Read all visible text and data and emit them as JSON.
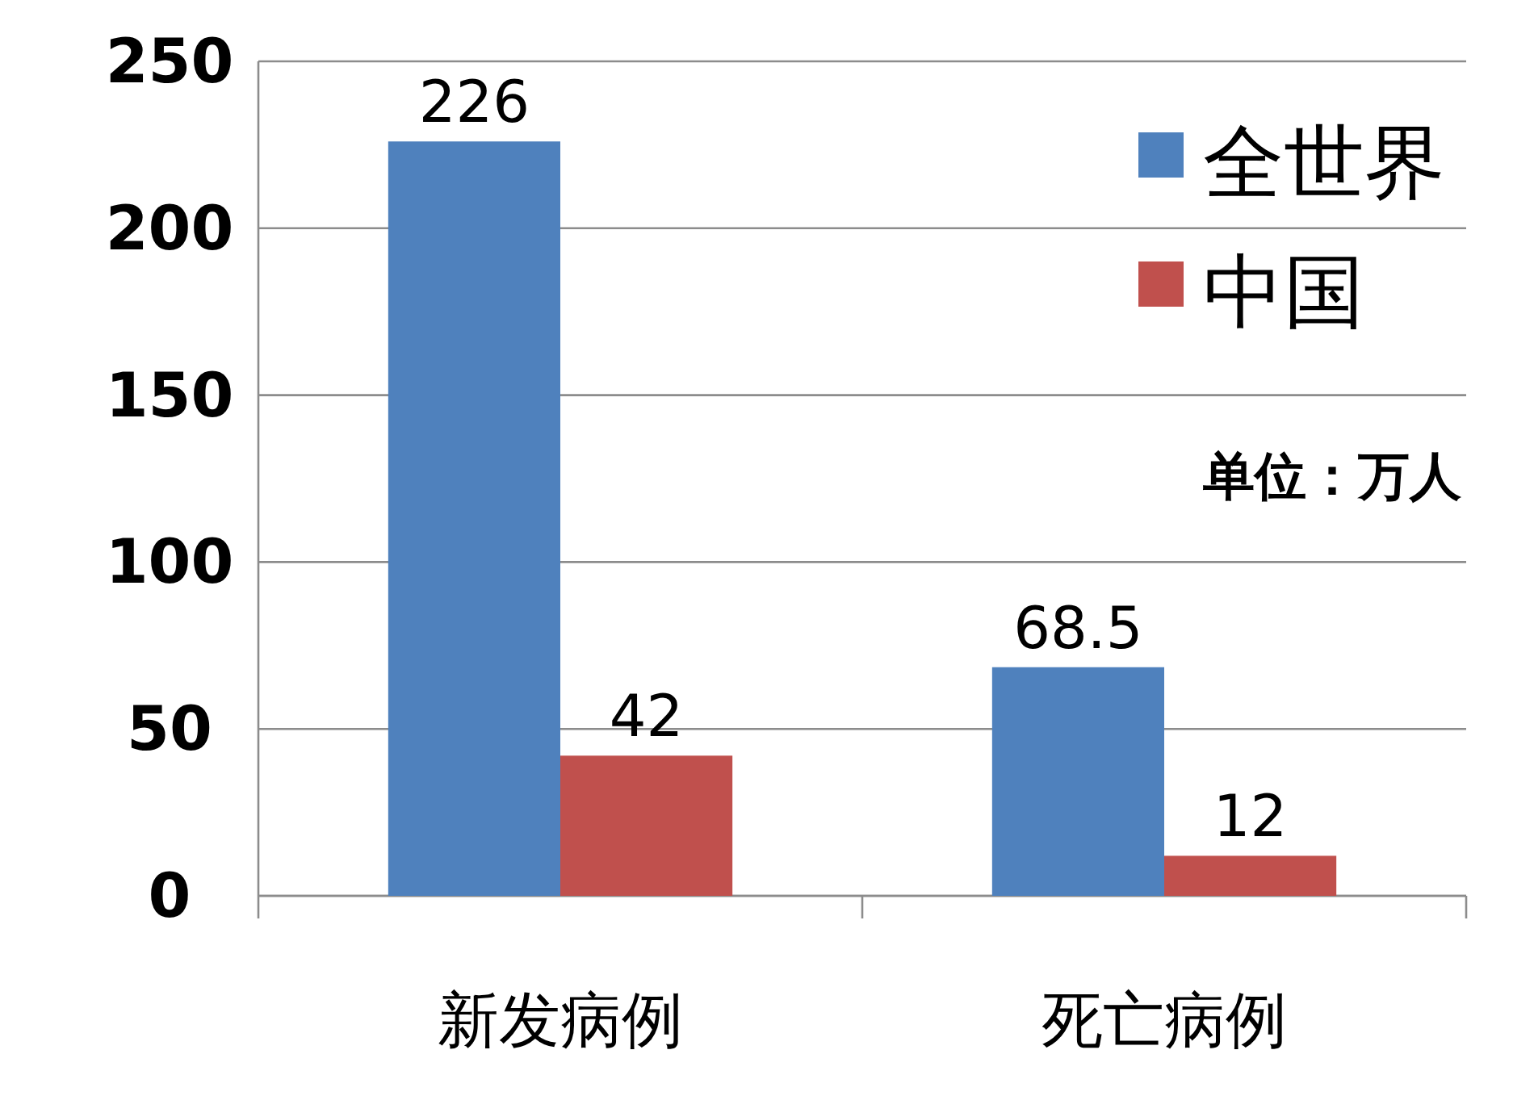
{
  "chart_data": {
    "type": "bar",
    "categories": [
      "新发病例",
      "死亡病例"
    ],
    "series": [
      {
        "name": "全世界",
        "color": "#4f81bd",
        "values": [
          226,
          68.5
        ]
      },
      {
        "name": "中国",
        "color": "#c0504d",
        "values": [
          42,
          12
        ]
      }
    ],
    "ylim": [
      0,
      250
    ],
    "yticks": [
      0,
      50,
      100,
      150,
      200,
      250
    ],
    "grid": "y",
    "legend": "top right",
    "data_labels": true,
    "annotations": [
      "单位：万人"
    ]
  }
}
